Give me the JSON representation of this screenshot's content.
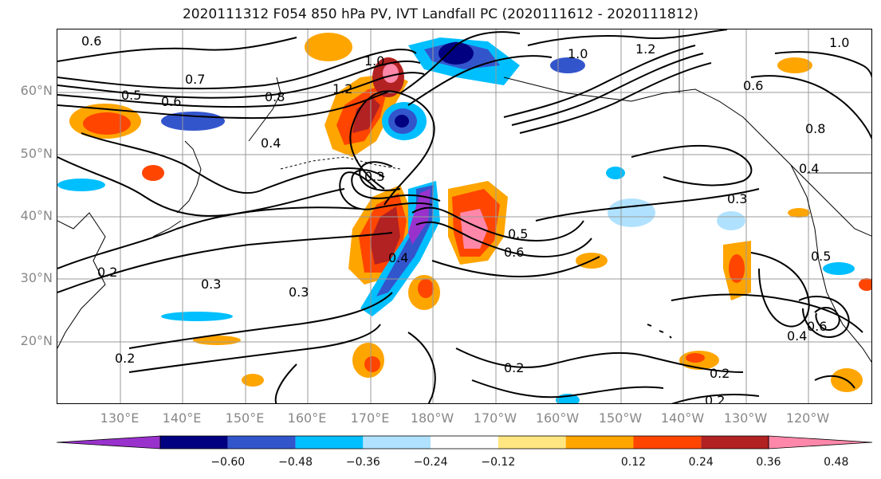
{
  "title": "2020111312 F054 850 hPa PV, IVT Landfall PC (2020111612 - 2020111812)",
  "map": {
    "lat_labels": [
      "60°N",
      "50°N",
      "40°N",
      "30°N",
      "20°N"
    ],
    "lon_labels": [
      "130°E",
      "140°E",
      "150°E",
      "160°E",
      "170°E",
      "180°W",
      "170°W",
      "160°W",
      "150°W",
      "140°W",
      "130°W",
      "120°W"
    ],
    "contour_labels": [
      "0.6",
      "0.7",
      "0.5",
      "0.6",
      "0.8",
      "1.0",
      "1.2",
      "0.4",
      "0.3",
      "0.2",
      "0.3",
      "0.5",
      "0.6",
      "0.4",
      "0.3",
      "0.2",
      "1.0",
      "1.2",
      "0.6",
      "0.8",
      "0.4",
      "0.3",
      "0.5",
      "0.6",
      "0.4",
      "0.2",
      "0.2",
      "0.2",
      "1.0"
    ],
    "grid": true
  },
  "colorbar": {
    "colors": [
      "#9932cc",
      "#000080",
      "#3355cc",
      "#00bfff",
      "#b0e2ff",
      "#ffffff",
      "#ffe680",
      "#ffa500",
      "#ff4500",
      "#b22222",
      "#ff88aa"
    ],
    "tick_labels": [
      "−0.60",
      "−0.48",
      "−0.36",
      "−0.24",
      "−0.12",
      "0.12",
      "0.24",
      "0.36",
      "0.48",
      "0.60"
    ]
  }
}
